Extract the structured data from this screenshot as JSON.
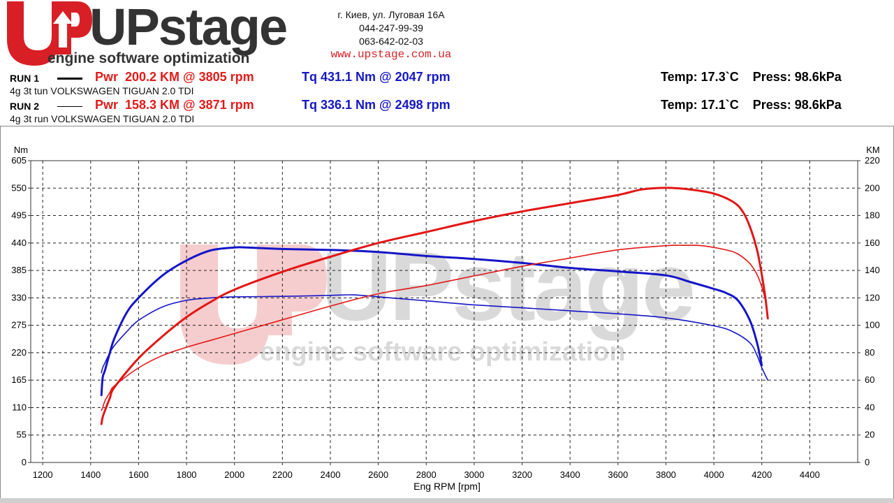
{
  "brand": {
    "logo_text": "UPstage",
    "tagline": "engine software optimization",
    "colors": {
      "red": "#d81f26",
      "dark": "#333333"
    }
  },
  "contact": {
    "address": "г. Киев, ул. Луговая 16А",
    "phone1": "044-247-99-39",
    "phone2": "063-642-02-03",
    "website": "www.upstage.com.ua"
  },
  "runs": [
    {
      "label": "RUN 1",
      "pwr": "Pwr  200.2 KM @ 3805 rpm",
      "tq": "Tq 431.1 Nm @ 2047 rpm",
      "conditions": "Temp: 17.3`C    Press: 98.6kPa",
      "description": "4g 3t tun VOLKSWAGEN TIGUAN 2.0 TDI"
    },
    {
      "label": "RUN 2",
      "pwr": "Pwr  158.3 KM @ 3871 rpm",
      "tq": "Tq 336.1 Nm @ 2498 rpm",
      "conditions": "Temp: 17.1`C    Press: 98.6kPa",
      "description": "4g 3t run VOLKSWAGEN TIGUAN 2.0 TDI"
    }
  ],
  "chart_data": {
    "type": "line",
    "xlabel": "Eng RPM [rpm]",
    "ylabel_left": "Nm",
    "ylabel_right": "KM",
    "xlim": [
      1150,
      4600
    ],
    "ylim_left": [
      0,
      605
    ],
    "ylim_right": [
      0,
      220
    ],
    "x_ticks": [
      1200,
      1400,
      1600,
      1800,
      2000,
      2200,
      2400,
      2600,
      2800,
      3000,
      3200,
      3400,
      3600,
      3800,
      4000,
      4200,
      4400
    ],
    "y_left_ticks": [
      0,
      55,
      110,
      165,
      220,
      275,
      330,
      385,
      440,
      495,
      550,
      605
    ],
    "y_right_ticks": [
      0,
      20,
      40,
      60,
      80,
      100,
      120,
      140,
      160,
      180,
      200,
      220
    ],
    "grid": true,
    "watermark": {
      "logo": "UPstage",
      "tagline": "engine software optimization"
    },
    "series": [
      {
        "name": "Tq RUN 1",
        "axis": "left",
        "color": "#1515c8",
        "width": 3,
        "x": [
          1445,
          1450,
          1460,
          1480,
          1500,
          1550,
          1600,
          1700,
          1800,
          1900,
          2000,
          2047,
          2100,
          2200,
          2400,
          2600,
          2800,
          3000,
          3200,
          3400,
          3600,
          3800,
          3900,
          4000,
          4050,
          4100,
          4150,
          4180,
          4200
        ],
        "y": [
          135,
          170,
          185,
          220,
          250,
          300,
          330,
          375,
          405,
          425,
          431,
          431,
          430,
          428,
          426,
          422,
          414,
          408,
          400,
          390,
          383,
          375,
          362,
          348,
          340,
          325,
          285,
          240,
          195
        ]
      },
      {
        "name": "Tq RUN 2",
        "axis": "left",
        "color": "#1515c8",
        "width": 1.6,
        "x": [
          1445,
          1450,
          1460,
          1480,
          1500,
          1550,
          1600,
          1700,
          1800,
          1900,
          2000,
          2200,
          2400,
          2498,
          2600,
          2800,
          3000,
          3200,
          3400,
          3600,
          3800,
          4000,
          4080,
          4150,
          4180,
          4200,
          4225
        ],
        "y": [
          180,
          190,
          200,
          220,
          235,
          262,
          285,
          312,
          325,
          330,
          332,
          333,
          335,
          336,
          332,
          324,
          316,
          310,
          304,
          298,
          290,
          274,
          262,
          240,
          215,
          190,
          165
        ]
      },
      {
        "name": "Pwr RUN 1",
        "axis": "right",
        "color": "#e21616",
        "width": 3,
        "x": [
          1445,
          1450,
          1460,
          1480,
          1500,
          1600,
          1700,
          1800,
          1900,
          2000,
          2200,
          2400,
          2600,
          2800,
          3000,
          3200,
          3400,
          3600,
          3700,
          3805,
          3900,
          4000,
          4080,
          4120,
          4150,
          4180,
          4200,
          4215,
          4225
        ],
        "y": [
          28,
          33,
          38,
          47,
          55,
          76,
          92,
          106,
          117,
          126,
          139,
          150,
          160,
          168,
          176,
          183,
          189,
          195,
          199,
          200.2,
          199,
          196,
          190,
          183,
          172,
          155,
          137,
          120,
          105
        ]
      },
      {
        "name": "Pwr RUN 2",
        "axis": "right",
        "color": "#e21616",
        "width": 1.6,
        "x": [
          1445,
          1450,
          1460,
          1480,
          1500,
          1600,
          1700,
          1800,
          1900,
          2000,
          2200,
          2400,
          2600,
          2800,
          3000,
          3200,
          3400,
          3600,
          3800,
          3871,
          3950,
          4050,
          4100,
          4150,
          4180,
          4200,
          4215,
          4225
        ],
        "y": [
          38,
          40,
          45,
          51,
          56,
          69,
          78,
          84,
          89,
          94,
          104,
          114,
          123,
          129,
          136,
          143,
          149,
          155,
          158,
          158.3,
          158,
          155,
          152,
          145,
          137,
          128,
          118,
          105
        ]
      }
    ]
  }
}
